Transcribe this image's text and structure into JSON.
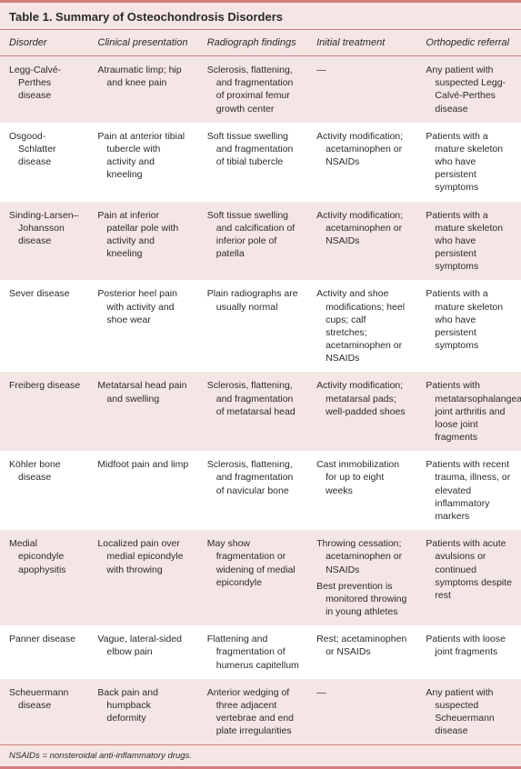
{
  "colors": {
    "accent": "#d27e7e",
    "rowShade": "#f5e6e6",
    "text": "#2a2a2a",
    "background": "#ffffff"
  },
  "layout": {
    "col_widths_pct": [
      17,
      21,
      21,
      21,
      20
    ]
  },
  "title": "Table 1. Summary of Osteochondrosis Disorders",
  "columns": [
    "Disorder",
    "Clinical presentation",
    "Radiograph findings",
    "Initial treatment",
    "Orthopedic referral"
  ],
  "rows": [
    {
      "disorder": "Legg-Calvé-Perthes disease",
      "presentation": "Atraumatic limp; hip and knee pain",
      "radiograph": "Sclerosis, flattening, and fragmentation of proximal femur growth center",
      "treatment": "—",
      "referral": "Any patient with suspected Legg-Calvé-Perthes disease"
    },
    {
      "disorder": "Osgood-Schlatter disease",
      "presentation": "Pain at anterior tibial tubercle with activity and kneeling",
      "radiograph": "Soft tissue swelling and fragmentation of tibial tubercle",
      "treatment": "Activity modification; acetaminophen or NSAIDs",
      "referral": "Patients with a mature skeleton who have persistent symptoms"
    },
    {
      "disorder": "Sinding-Larsen–Johansson disease",
      "presentation": "Pain at inferior patellar pole with activity and kneeling",
      "radiograph": "Soft tissue swelling and calcification of inferior pole of patella",
      "treatment": "Activity modification; acetaminophen or NSAIDs",
      "referral": "Patients with a mature skeleton who have persistent symptoms"
    },
    {
      "disorder": "Sever disease",
      "presentation": "Posterior heel pain with activity and shoe wear",
      "radiograph": "Plain radiographs are usually normal",
      "treatment": "Activity and shoe modifications; heel cups; calf stretches; acetaminophen or NSAIDs",
      "referral": "Patients with a mature skeleton who have persistent symptoms"
    },
    {
      "disorder": "Freiberg disease",
      "presentation": "Metatarsal head pain and swelling",
      "radiograph": "Sclerosis, flattening, and fragmentation of metatarsal head",
      "treatment": "Activity modification; metatarsal pads; well-padded shoes",
      "referral": "Patients with metatarsophalangeal joint arthritis and loose joint fragments"
    },
    {
      "disorder": "Köhler bone disease",
      "presentation": "Midfoot pain and limp",
      "radiograph": "Sclerosis, flattening, and fragmentation of navicular bone",
      "treatment": "Cast immobilization for up to eight weeks",
      "referral": "Patients with recent trauma, illness, or elevated inflammatory markers"
    },
    {
      "disorder": "Medial epicondyle apophysitis",
      "presentation": "Localized pain over medial epicondyle with throwing",
      "radiograph": "May show fragmentation or widening of medial epicondyle",
      "treatment": "Throwing cessation; acetaminophen or NSAIDs",
      "treatment2": "Best prevention is monitored throwing in young athletes",
      "referral": "Patients with acute avulsions or continued symptoms despite rest"
    },
    {
      "disorder": "Panner disease",
      "presentation": "Vague, lateral-sided elbow pain",
      "radiograph": "Flattening and fragmentation of humerus capitellum",
      "treatment": "Rest; acetaminophen or NSAIDs",
      "referral": "Patients with loose joint fragments"
    },
    {
      "disorder": "Scheuermann disease",
      "presentation": "Back pain and humpback deformity",
      "radiograph": "Anterior wedging of three adjacent vertebrae and end plate irregularities",
      "treatment": "—",
      "referral": "Any patient with suspected Scheuermann disease"
    }
  ],
  "footnote": "NSAIDs = nonsteroidal anti-inflammatory drugs."
}
